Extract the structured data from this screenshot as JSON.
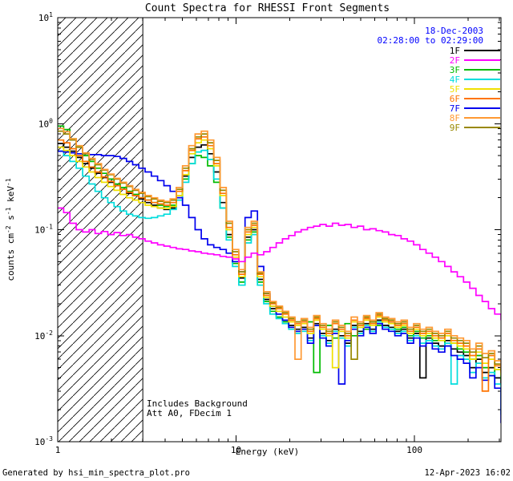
{
  "title": "Count Spectra for RHESSI Front Segments",
  "annotations": {
    "date": "18-Dec-2003",
    "time_range": "02:28:00 to 02:29:00",
    "includes_background": "Includes Background",
    "attenuator": "Att A0, FDecim 1"
  },
  "footer": {
    "generated_by": "Generated by hsi_min_spectra_plot.pro",
    "timestamp": "12-Apr-2023 16:02"
  },
  "chart_data": {
    "type": "line",
    "style": "histogram-steps",
    "scale": "log-log",
    "title": "Count Spectra for RHESSI Front Segments",
    "xlabel": "Energy (keV)",
    "ylabel": "counts cm^-2 s^-1 keV^-1",
    "ylabel_parts": [
      {
        "t": "counts cm"
      },
      {
        "t": "-2",
        "sup": true
      },
      {
        "t": " s"
      },
      {
        "t": "-1",
        "sup": true
      },
      {
        "t": " keV"
      },
      {
        "t": "-1",
        "sup": true
      }
    ],
    "xlim": [
      1,
      305.5
    ],
    "ylim": [
      0.001,
      10
    ],
    "x_ticks": [
      {
        "v": 1,
        "label": "1"
      },
      {
        "v": 10,
        "label": "10"
      },
      {
        "v": 100,
        "label": "100"
      }
    ],
    "y_ticks": [
      {
        "v": 10,
        "label": "10",
        "exp": "1"
      },
      {
        "v": 1,
        "label": "10",
        "exp": "0"
      },
      {
        "v": 0.1,
        "label": "10",
        "exp": "-1"
      },
      {
        "v": 0.01,
        "label": "10",
        "exp": "-2"
      },
      {
        "v": 0.001,
        "label": "10",
        "exp": "-3"
      }
    ],
    "hatched_region": [
      1,
      3
    ],
    "legend_position": "top-right",
    "date_label_color": "#0000ff",
    "x": [
      1.0,
      1.08,
      1.17,
      1.27,
      1.38,
      1.5,
      1.62,
      1.76,
      1.91,
      2.07,
      2.24,
      2.43,
      2.63,
      2.85,
      3.09,
      3.35,
      3.63,
      3.94,
      4.27,
      4.62,
      5.01,
      5.43,
      5.89,
      6.38,
      6.92,
      7.5,
      8.13,
      8.81,
      9.55,
      10.35,
      11.22,
      12.16,
      13.18,
      14.29,
      15.49,
      16.79,
      18.2,
      19.72,
      21.38,
      23.17,
      25.12,
      27.23,
      29.51,
      31.99,
      34.67,
      37.58,
      40.74,
      44.16,
      47.86,
      51.88,
      56.23,
      60.95,
      66.07,
      71.61,
      77.62,
      84.14,
      91.2,
      98.85,
      107.2,
      116.1,
      125.9,
      136.5,
      147.9,
      160.3,
      173.8,
      188.4,
      204.2,
      221.3,
      239.9,
      260.0,
      281.8,
      305.5
    ],
    "series": [
      {
        "name": "1F",
        "color": "#000000",
        "values": [
          0.65,
          0.6,
          0.55,
          0.48,
          0.42,
          0.38,
          0.34,
          0.31,
          0.28,
          0.26,
          0.24,
          0.22,
          0.21,
          0.195,
          0.18,
          0.17,
          0.16,
          0.155,
          0.16,
          0.2,
          0.32,
          0.48,
          0.6,
          0.63,
          0.52,
          0.35,
          0.18,
          0.09,
          0.05,
          0.035,
          0.085,
          0.1,
          0.034,
          0.022,
          0.018,
          0.016,
          0.014,
          0.0125,
          0.0115,
          0.012,
          0.0095,
          0.013,
          0.0105,
          0.009,
          0.0115,
          0.01,
          0.0085,
          0.0125,
          0.011,
          0.013,
          0.0115,
          0.014,
          0.0125,
          0.012,
          0.011,
          0.0115,
          0.0095,
          0.0105,
          0.004,
          0.0095,
          0.0085,
          0.008,
          0.009,
          0.0075,
          0.007,
          0.0065,
          0.005,
          0.006,
          0.0045,
          0.005,
          0.004,
          0.0035
        ]
      },
      {
        "name": "2F",
        "color": "#ff00ff",
        "values": [
          0.16,
          0.145,
          0.115,
          0.1,
          0.095,
          0.1,
          0.092,
          0.096,
          0.09,
          0.094,
          0.088,
          0.09,
          0.085,
          0.082,
          0.078,
          0.075,
          0.072,
          0.07,
          0.068,
          0.066,
          0.065,
          0.063,
          0.062,
          0.06,
          0.059,
          0.058,
          0.056,
          0.055,
          0.053,
          0.05,
          0.055,
          0.06,
          0.058,
          0.062,
          0.068,
          0.075,
          0.082,
          0.088,
          0.095,
          0.1,
          0.105,
          0.108,
          0.112,
          0.108,
          0.115,
          0.11,
          0.112,
          0.105,
          0.108,
          0.1,
          0.102,
          0.098,
          0.095,
          0.09,
          0.088,
          0.082,
          0.078,
          0.072,
          0.065,
          0.06,
          0.055,
          0.05,
          0.045,
          0.04,
          0.036,
          0.032,
          0.028,
          0.024,
          0.021,
          0.018,
          0.016,
          0.014
        ]
      },
      {
        "name": "3F",
        "color": "#00bb00",
        "values": [
          0.95,
          0.88,
          0.72,
          0.6,
          0.5,
          0.44,
          0.38,
          0.34,
          0.3,
          0.27,
          0.25,
          0.23,
          0.215,
          0.2,
          0.19,
          0.18,
          0.17,
          0.165,
          0.17,
          0.21,
          0.3,
          0.42,
          0.5,
          0.48,
          0.4,
          0.28,
          0.16,
          0.085,
          0.048,
          0.032,
          0.08,
          0.095,
          0.032,
          0.021,
          0.017,
          0.015,
          0.0135,
          0.012,
          0.011,
          0.0115,
          0.0135,
          0.0045,
          0.0115,
          0.0125,
          0.0095,
          0.011,
          0.013,
          0.01,
          0.012,
          0.0115,
          0.0135,
          0.0125,
          0.0145,
          0.013,
          0.0115,
          0.012,
          0.01,
          0.011,
          0.0095,
          0.01,
          0.009,
          0.0095,
          0.008,
          0.0085,
          0.0075,
          0.007,
          0.006,
          0.0065,
          0.005,
          0.0042,
          0.0048,
          0.0038
        ]
      },
      {
        "name": "4F",
        "color": "#00dddd",
        "values": [
          0.55,
          0.5,
          0.44,
          0.38,
          0.32,
          0.27,
          0.23,
          0.2,
          0.18,
          0.165,
          0.15,
          0.14,
          0.135,
          0.13,
          0.128,
          0.13,
          0.135,
          0.14,
          0.155,
          0.19,
          0.28,
          0.42,
          0.54,
          0.56,
          0.46,
          0.3,
          0.16,
          0.08,
          0.045,
          0.03,
          0.075,
          0.09,
          0.03,
          0.02,
          0.016,
          0.0145,
          0.013,
          0.0115,
          0.0105,
          0.011,
          0.009,
          0.0125,
          0.01,
          0.0085,
          0.011,
          0.0095,
          0.008,
          0.012,
          0.0105,
          0.0125,
          0.011,
          0.0135,
          0.012,
          0.0115,
          0.0105,
          0.011,
          0.009,
          0.01,
          0.0085,
          0.009,
          0.008,
          0.0075,
          0.0085,
          0.0035,
          0.0065,
          0.006,
          0.0045,
          0.0055,
          0.004,
          0.0045,
          0.0035,
          0.0018
        ]
      },
      {
        "name": "5F",
        "color": "#f0e000",
        "values": [
          0.6,
          0.56,
          0.5,
          0.44,
          0.39,
          0.35,
          0.31,
          0.28,
          0.255,
          0.235,
          0.215,
          0.2,
          0.19,
          0.18,
          0.17,
          0.165,
          0.16,
          0.158,
          0.165,
          0.21,
          0.33,
          0.52,
          0.66,
          0.7,
          0.58,
          0.4,
          0.21,
          0.1,
          0.055,
          0.036,
          0.09,
          0.105,
          0.036,
          0.023,
          0.019,
          0.017,
          0.015,
          0.0135,
          0.0125,
          0.013,
          0.0105,
          0.014,
          0.0115,
          0.01,
          0.005,
          0.011,
          0.0095,
          0.0135,
          0.012,
          0.014,
          0.0125,
          0.015,
          0.0135,
          0.013,
          0.012,
          0.0125,
          0.0105,
          0.0115,
          0.01,
          0.0105,
          0.0095,
          0.009,
          0.01,
          0.0085,
          0.008,
          0.0075,
          0.006,
          0.007,
          0.0055,
          0.006,
          0.0048,
          0.0042
        ]
      },
      {
        "name": "6F",
        "color": "#ff7400",
        "values": [
          0.7,
          0.66,
          0.58,
          0.5,
          0.44,
          0.39,
          0.35,
          0.315,
          0.285,
          0.26,
          0.24,
          0.225,
          0.21,
          0.2,
          0.19,
          0.18,
          0.175,
          0.17,
          0.18,
          0.23,
          0.36,
          0.56,
          0.72,
          0.75,
          0.62,
          0.42,
          0.22,
          0.105,
          0.058,
          0.038,
          0.095,
          0.11,
          0.038,
          0.024,
          0.02,
          0.018,
          0.016,
          0.014,
          0.013,
          0.0135,
          0.011,
          0.0145,
          0.012,
          0.0105,
          0.013,
          0.0115,
          0.01,
          0.014,
          0.0125,
          0.0145,
          0.013,
          0.0155,
          0.014,
          0.0135,
          0.0125,
          0.013,
          0.011,
          0.012,
          0.0105,
          0.011,
          0.01,
          0.0095,
          0.0105,
          0.009,
          0.0085,
          0.008,
          0.0065,
          0.0075,
          0.003,
          0.0065,
          0.0052,
          0.0045
        ]
      },
      {
        "name": "7F",
        "color": "#0000ee",
        "values": [
          0.55,
          0.54,
          0.53,
          0.52,
          0.52,
          0.51,
          0.51,
          0.5,
          0.5,
          0.49,
          0.47,
          0.44,
          0.41,
          0.38,
          0.35,
          0.32,
          0.29,
          0.26,
          0.23,
          0.2,
          0.17,
          0.13,
          0.1,
          0.082,
          0.072,
          0.068,
          0.065,
          0.06,
          0.05,
          0.04,
          0.13,
          0.15,
          0.045,
          0.025,
          0.019,
          0.016,
          0.014,
          0.012,
          0.011,
          0.0115,
          0.0085,
          0.0125,
          0.0095,
          0.008,
          0.0105,
          0.0035,
          0.009,
          0.0115,
          0.01,
          0.012,
          0.0105,
          0.013,
          0.0115,
          0.011,
          0.01,
          0.0105,
          0.0085,
          0.0095,
          0.008,
          0.0085,
          0.0075,
          0.007,
          0.008,
          0.0065,
          0.006,
          0.0055,
          0.004,
          0.005,
          0.0038,
          0.0042,
          0.0032,
          0.0015
        ]
      },
      {
        "name": "8F",
        "color": "#ff9933",
        "values": [
          0.9,
          0.84,
          0.72,
          0.62,
          0.53,
          0.47,
          0.42,
          0.37,
          0.335,
          0.305,
          0.28,
          0.26,
          0.24,
          0.225,
          0.21,
          0.2,
          0.19,
          0.185,
          0.195,
          0.25,
          0.4,
          0.62,
          0.8,
          0.85,
          0.7,
          0.48,
          0.25,
          0.12,
          0.065,
          0.042,
          0.105,
          0.12,
          0.04,
          0.026,
          0.021,
          0.019,
          0.017,
          0.015,
          0.006,
          0.0145,
          0.012,
          0.0155,
          0.013,
          0.0115,
          0.014,
          0.0125,
          0.011,
          0.015,
          0.0135,
          0.0155,
          0.014,
          0.0165,
          0.015,
          0.0145,
          0.0135,
          0.014,
          0.012,
          0.013,
          0.0115,
          0.012,
          0.011,
          0.0105,
          0.0115,
          0.01,
          0.0095,
          0.009,
          0.0075,
          0.0085,
          0.0068,
          0.0072,
          0.0058,
          0.005
        ]
      },
      {
        "name": "9F",
        "color": "#998800",
        "values": [
          0.85,
          0.8,
          0.7,
          0.6,
          0.52,
          0.46,
          0.41,
          0.365,
          0.33,
          0.3,
          0.275,
          0.255,
          0.235,
          0.22,
          0.205,
          0.195,
          0.185,
          0.18,
          0.19,
          0.24,
          0.38,
          0.58,
          0.75,
          0.8,
          0.66,
          0.45,
          0.235,
          0.115,
          0.062,
          0.04,
          0.1,
          0.115,
          0.039,
          0.025,
          0.0205,
          0.0185,
          0.0165,
          0.0145,
          0.0135,
          0.014,
          0.0115,
          0.015,
          0.0125,
          0.011,
          0.0135,
          0.012,
          0.0105,
          0.006,
          0.013,
          0.015,
          0.0135,
          0.016,
          0.0145,
          0.014,
          0.013,
          0.0135,
          0.0115,
          0.0125,
          0.011,
          0.0115,
          0.0105,
          0.01,
          0.011,
          0.0095,
          0.009,
          0.0085,
          0.007,
          0.008,
          0.0062,
          0.0068,
          0.0054,
          0.0047
        ]
      }
    ]
  }
}
